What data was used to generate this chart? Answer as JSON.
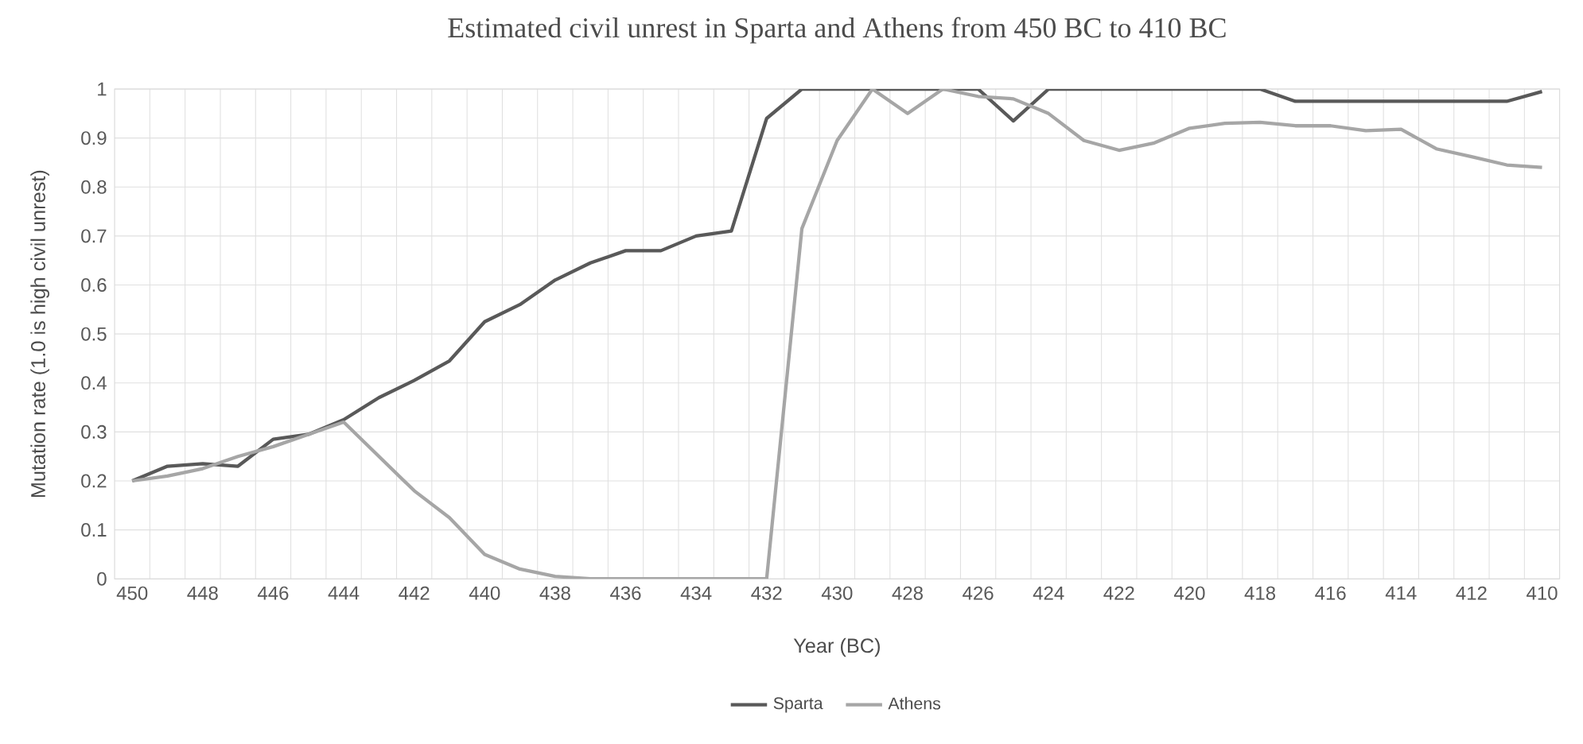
{
  "chart_data": {
    "type": "line",
    "title": "Estimated civil unrest in Sparta and Athens from 450 BC to 410 BC",
    "xlabel": "Year (BC)",
    "ylabel": "Mutation rate (1.0 is high civil unrest)",
    "categories": [
      "450",
      null,
      "448",
      null,
      "446",
      null,
      "444",
      null,
      "442",
      null,
      "440",
      null,
      "438",
      null,
      "436",
      null,
      "434",
      null,
      "432",
      null,
      "430",
      null,
      "428",
      null,
      "426",
      null,
      "424",
      null,
      "422",
      null,
      "420",
      null,
      "418",
      null,
      "416",
      null,
      "414",
      null,
      "412",
      null,
      "410"
    ],
    "series": [
      {
        "name": "Sparta",
        "color": "#595959",
        "values": [
          0.2,
          0.23,
          0.235,
          0.23,
          0.285,
          0.295,
          0.325,
          0.37,
          0.405,
          0.445,
          0.525,
          0.56,
          0.61,
          0.645,
          0.67,
          0.67,
          0.7,
          0.71,
          0.94,
          1,
          1,
          1,
          1,
          1,
          1,
          0.935,
          1,
          1,
          1,
          1,
          1,
          1,
          1,
          0.975,
          0.975,
          0.975,
          0.975,
          0.975,
          0.975,
          0.975,
          0.995
        ]
      },
      {
        "name": "Athens",
        "color": "#a6a6a6",
        "values": [
          0.2,
          0.21,
          0.225,
          0.25,
          0.27,
          0.295,
          0.32,
          0.25,
          0.18,
          0.125,
          0.05,
          0.02,
          0.005,
          0,
          0,
          0,
          0,
          0,
          0,
          0.715,
          0.895,
          1,
          0.95,
          1,
          0.985,
          0.98,
          0.95,
          0.895,
          0.875,
          0.89,
          0.92,
          0.93,
          0.932,
          0.925,
          0.925,
          0.915,
          0.918,
          0.878,
          0.862,
          0.845,
          0.84
        ]
      }
    ],
    "ylim": [
      0,
      1
    ],
    "yticks": [
      0,
      0.1,
      0.2,
      0.3,
      0.4,
      0.5,
      0.6,
      0.7,
      0.8,
      0.9,
      1
    ],
    "grid": true,
    "legend": "bottom",
    "marker": "none",
    "line_style": "solid"
  }
}
